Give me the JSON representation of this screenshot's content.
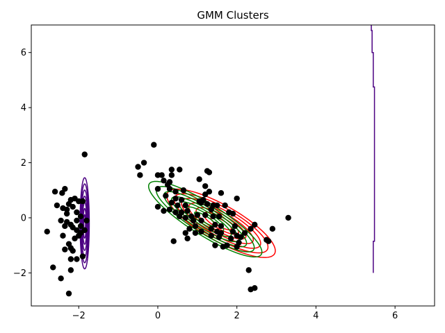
{
  "chart_data": {
    "type": "scatter",
    "title": "GMM Clusters",
    "xlabel": "",
    "ylabel": "",
    "xlim": [
      -3.2,
      7.0
    ],
    "ylim": [
      -3.2,
      7.0
    ],
    "xticks": [
      -2,
      0,
      2,
      4,
      6
    ],
    "yticks": [
      -2,
      0,
      2,
      4,
      6
    ],
    "xtick_labels": [
      "−2",
      "0",
      "2",
      "4",
      "6"
    ],
    "ytick_labels": [
      "−2",
      "0",
      "2",
      "4",
      "6"
    ],
    "grid": false,
    "legend": "none",
    "point_color": "#000000",
    "points": [
      [
        -1.85,
        2.3
      ],
      [
        -2.6,
        0.95
      ],
      [
        -2.35,
        1.05
      ],
      [
        -2.42,
        0.9
      ],
      [
        -2.55,
        0.45
      ],
      [
        -2.4,
        0.35
      ],
      [
        -2.3,
        0.3
      ],
      [
        -2.2,
        0.65
      ],
      [
        -2.1,
        0.7
      ],
      [
        -2.0,
        0.6
      ],
      [
        -1.9,
        0.6
      ],
      [
        -2.25,
        0.5
      ],
      [
        -2.15,
        0.4
      ],
      [
        -2.3,
        0.15
      ],
      [
        -2.05,
        0.2
      ],
      [
        -1.95,
        0.05
      ],
      [
        -2.45,
        -0.1
      ],
      [
        -2.3,
        -0.15
      ],
      [
        -2.2,
        -0.25
      ],
      [
        -2.35,
        -0.3
      ],
      [
        -2.15,
        -0.35
      ],
      [
        -2.05,
        -0.45
      ],
      [
        -1.95,
        -0.55
      ],
      [
        -1.85,
        -0.45
      ],
      [
        -1.8,
        -0.1
      ],
      [
        -2.0,
        -0.65
      ],
      [
        -2.1,
        -0.75
      ],
      [
        -2.4,
        -0.65
      ],
      [
        -2.25,
        -0.95
      ],
      [
        -2.2,
        -1.1
      ],
      [
        -2.35,
        -1.15
      ],
      [
        -2.15,
        -1.2
      ],
      [
        -1.9,
        -1.4
      ],
      [
        -2.05,
        -1.5
      ],
      [
        -2.2,
        -1.5
      ],
      [
        -2.2,
        -1.9
      ],
      [
        -2.65,
        -1.8
      ],
      [
        -2.45,
        -2.2
      ],
      [
        -2.25,
        -2.75
      ],
      [
        -2.8,
        -0.5
      ],
      [
        -2.05,
        -0.1
      ],
      [
        -1.95,
        -0.3
      ],
      [
        -0.1,
        2.65
      ],
      [
        -0.35,
        2.0
      ],
      [
        -0.5,
        1.85
      ],
      [
        -0.45,
        1.55
      ],
      [
        0.35,
        1.75
      ],
      [
        0.55,
        1.75
      ],
      [
        0.0,
        1.55
      ],
      [
        0.1,
        1.55
      ],
      [
        0.35,
        1.55
      ],
      [
        0.15,
        1.35
      ],
      [
        0.3,
        1.3
      ],
      [
        0.0,
        1.05
      ],
      [
        0.3,
        1.05
      ],
      [
        0.45,
        0.95
      ],
      [
        0.2,
        0.8
      ],
      [
        0.45,
        0.7
      ],
      [
        0.6,
        0.65
      ],
      [
        0.35,
        0.55
      ],
      [
        0.5,
        0.45
      ],
      [
        0.7,
        0.45
      ],
      [
        0.0,
        0.4
      ],
      [
        0.15,
        0.25
      ],
      [
        0.3,
        0.3
      ],
      [
        0.45,
        0.2
      ],
      [
        0.6,
        0.2
      ],
      [
        0.75,
        0.25
      ],
      [
        0.55,
        0.05
      ],
      [
        0.7,
        0.0
      ],
      [
        0.85,
        0.05
      ],
      [
        1.0,
        0.1
      ],
      [
        0.9,
        -0.1
      ],
      [
        1.1,
        -0.1
      ],
      [
        0.95,
        -0.3
      ],
      [
        0.8,
        -0.4
      ],
      [
        0.7,
        -0.55
      ],
      [
        0.95,
        -0.55
      ],
      [
        1.1,
        -0.5
      ],
      [
        0.75,
        -0.75
      ],
      [
        0.4,
        -0.85
      ],
      [
        1.25,
        1.7
      ],
      [
        1.3,
        1.65
      ],
      [
        1.2,
        1.15
      ],
      [
        1.3,
        0.95
      ],
      [
        1.2,
        0.85
      ],
      [
        1.05,
        1.4
      ],
      [
        1.05,
        0.6
      ],
      [
        1.15,
        0.65
      ],
      [
        1.25,
        0.5
      ],
      [
        1.35,
        0.3
      ],
      [
        1.2,
        0.1
      ],
      [
        1.4,
        0.05
      ],
      [
        1.55,
        0.05
      ],
      [
        1.45,
        -0.25
      ],
      [
        1.35,
        -0.4
      ],
      [
        1.5,
        -0.5
      ],
      [
        1.35,
        -0.65
      ],
      [
        1.55,
        -0.7
      ],
      [
        1.45,
        -1.0
      ],
      [
        1.65,
        -1.05
      ],
      [
        1.75,
        -1.0
      ],
      [
        1.6,
        0.9
      ],
      [
        1.5,
        0.45
      ],
      [
        1.7,
        0.45
      ],
      [
        1.8,
        0.2
      ],
      [
        1.9,
        0.15
      ],
      [
        2.0,
        0.7
      ],
      [
        1.9,
        -0.5
      ],
      [
        1.85,
        -0.75
      ],
      [
        2.0,
        -0.65
      ],
      [
        2.05,
        -0.9
      ],
      [
        2.0,
        -1.05
      ],
      [
        1.95,
        -0.3
      ],
      [
        1.6,
        -0.3
      ],
      [
        2.2,
        -0.55
      ],
      [
        2.35,
        -0.4
      ],
      [
        2.45,
        -0.25
      ],
      [
        2.3,
        -1.9
      ],
      [
        2.35,
        -2.6
      ],
      [
        2.45,
        -2.55
      ],
      [
        2.75,
        -0.8
      ],
      [
        2.8,
        -0.85
      ],
      [
        2.9,
        -0.4
      ],
      [
        3.3,
        0.0
      ],
      [
        1.1,
        0.55
      ],
      [
        1.4,
        0.45
      ],
      [
        0.65,
        1.0
      ],
      [
        0.25,
        1.2
      ],
      [
        1.6,
        -0.55
      ],
      [
        2.1,
        -0.7
      ]
    ],
    "components": [
      {
        "color": "#ff0000",
        "mean": [
          1.6,
          -0.2
        ],
        "cov": [
          [
            0.55,
            -0.4
          ],
          [
            -0.4,
            0.45
          ]
        ]
      },
      {
        "color": "#008000",
        "mean": [
          1.2,
          -0.05
        ],
        "cov": [
          [
            0.6,
            -0.5
          ],
          [
            -0.5,
            0.55
          ]
        ]
      },
      {
        "color": "#4b0082",
        "mean": [
          -1.85,
          -0.2
        ],
        "cov": [
          [
            0.004,
            0.0
          ],
          [
            0.0,
            0.8
          ]
        ]
      }
    ],
    "boundary": {
      "color": "#4b0082",
      "points": [
        [
          5.4,
          7.0
        ],
        [
          5.4,
          6.8
        ],
        [
          5.42,
          6.8
        ],
        [
          5.42,
          6.0
        ],
        [
          5.45,
          6.0
        ],
        [
          5.45,
          4.75
        ],
        [
          5.48,
          4.75
        ],
        [
          5.48,
          -0.85
        ],
        [
          5.45,
          -0.85
        ],
        [
          5.45,
          -2.0
        ]
      ]
    }
  }
}
